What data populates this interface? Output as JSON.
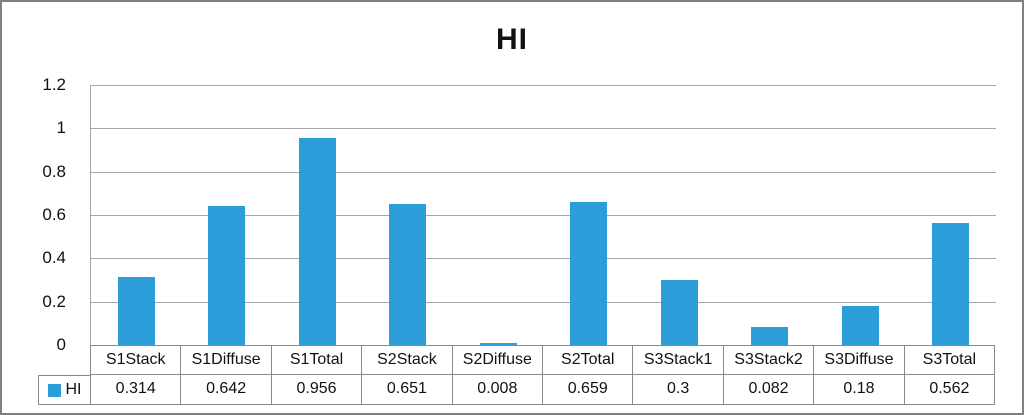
{
  "title": "HI",
  "colors": {
    "bar": "#2B9ED9",
    "gridline": "#A6A6A6",
    "table_border": "#8A8A8A",
    "outer_border": "#7F7F7F",
    "text": "#111111"
  },
  "legend": {
    "label": "HI",
    "swatch": "blue-square-icon"
  },
  "y_axis": {
    "ticks": [
      "1.2",
      "1",
      "0.8",
      "0.6",
      "0.4",
      "0.2",
      "0"
    ],
    "min": 0,
    "max": 1.2
  },
  "chart_data": {
    "type": "bar",
    "title": "HI",
    "categories": [
      "S1Stack",
      "S1Diffuse",
      "S1Total",
      "S2Stack",
      "S2Diffuse",
      "S2Total",
      "S3Stack1",
      "S3Stack2",
      "S3Diffuse",
      "S3Total"
    ],
    "series": [
      {
        "name": "HI",
        "values": [
          0.314,
          0.642,
          0.956,
          0.651,
          0.008,
          0.659,
          0.3,
          0.082,
          0.18,
          0.562
        ]
      }
    ],
    "value_labels": [
      "0.314",
      "0.642",
      "0.956",
      "0.651",
      "0.008",
      "0.659",
      "0.3",
      "0.082",
      "0.18",
      "0.562"
    ],
    "xlabel": "",
    "ylabel": "",
    "ylim": [
      0,
      1.2
    ],
    "grid": true,
    "legend_position": "data-table-left",
    "data_table": true
  }
}
